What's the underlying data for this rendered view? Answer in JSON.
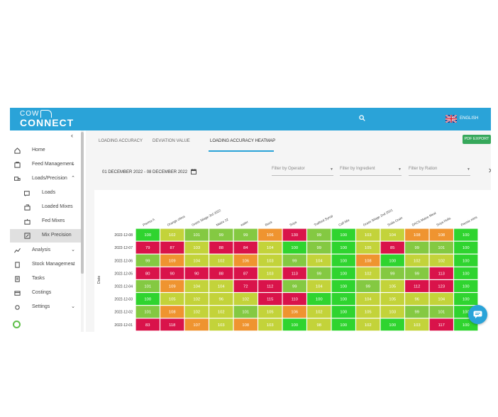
{
  "app": {
    "logo_top": "COW",
    "logo_main": "CONNECT",
    "language": "ENGLISH"
  },
  "sidebar": {
    "items": [
      {
        "label": "Home",
        "icon": "home-icon",
        "chevron": ""
      },
      {
        "label": "Feed Management",
        "icon": "feed-icon",
        "chevron": "⌄"
      },
      {
        "label": "Loads/Precision",
        "icon": "truck-icon",
        "chevron": "⌃"
      },
      {
        "label": "Loads",
        "icon": "load-icon",
        "chevron": ""
      },
      {
        "label": "Loaded Mixes",
        "icon": "loaded-mixes-icon",
        "chevron": ""
      },
      {
        "label": "Fed Mixes",
        "icon": "fed-mixes-icon",
        "chevron": ""
      },
      {
        "label": "Mix Precision",
        "icon": "mix-precision-icon",
        "chevron": ""
      },
      {
        "label": "Analysis",
        "icon": "analysis-icon",
        "chevron": "⌄"
      },
      {
        "label": "Stock Management",
        "icon": "stock-icon",
        "chevron": "⌄"
      },
      {
        "label": "Tasks",
        "icon": "tasks-icon",
        "chevron": ""
      },
      {
        "label": "Costings",
        "icon": "costings-icon",
        "chevron": ""
      },
      {
        "label": "Settings",
        "icon": "settings-icon",
        "chevron": "⌄"
      }
    ]
  },
  "tabs": [
    {
      "label": "LOADING ACCURACY"
    },
    {
      "label": "DEVIATION VALUE"
    },
    {
      "label": "LOADING ACCURACY HEATMAP"
    }
  ],
  "toolbar": {
    "pdf_label": "PDF EXPORT"
  },
  "filters": {
    "date_range": "01 DECEMBER 2022 - 08 DECEMBER 2022",
    "operator": "Filter by Operator",
    "ingredient": "Filter by Ingredient",
    "ration": "Filter by Ration"
  },
  "chart_data": {
    "type": "heatmap",
    "ylabel": "Date",
    "columns": [
      "Premix A",
      "Orange citrus",
      "Grass Silage 3rd 2022",
      "Maize 22",
      "water",
      "Rock",
      "Soya",
      "Trafford Syrup",
      "Calf Mix",
      "Grass Silage 2nd 2021",
      "Soda Grain",
      "DACS Maize Meal",
      "Soya Hulls",
      "Premix mins"
    ],
    "rows": [
      "2022-12-08",
      "2022-12-07",
      "2022-12-06",
      "2022-12-05",
      "2022-12-04",
      "2022-12-03",
      "2022-12-02",
      "2022-12-01"
    ],
    "values": [
      [
        100,
        102,
        101,
        99,
        99,
        106,
        130,
        99,
        100,
        103,
        104,
        108,
        108,
        100
      ],
      [
        79,
        87,
        103,
        88,
        84,
        104,
        100,
        99,
        100,
        105,
        85,
        99,
        101,
        100
      ],
      [
        99,
        109,
        104,
        102,
        106,
        103,
        99,
        104,
        100,
        108,
        100,
        102,
        102,
        100
      ],
      [
        80,
        90,
        90,
        88,
        87,
        103,
        113,
        99,
        100,
        102,
        99,
        99,
        113,
        100
      ],
      [
        101,
        109,
        104,
        104,
        72,
        112,
        99,
        104,
        100,
        99,
        105,
        112,
        123,
        100
      ],
      [
        100,
        105,
        102,
        96,
        102,
        115,
        110,
        100,
        100,
        104,
        105,
        96,
        104,
        100
      ],
      [
        101,
        108,
        102,
        102,
        101,
        105,
        106,
        102,
        100,
        105,
        103,
        99,
        101,
        100
      ],
      [
        83,
        118,
        107,
        103,
        108,
        103,
        100,
        98,
        100,
        102,
        100,
        103,
        117,
        100
      ]
    ],
    "colors": {
      "exact": "#2fd42f",
      "near": "#84c942",
      "mid": "#c3d33a",
      "warn": "#ef9430",
      "high": "#d9134a"
    }
  }
}
